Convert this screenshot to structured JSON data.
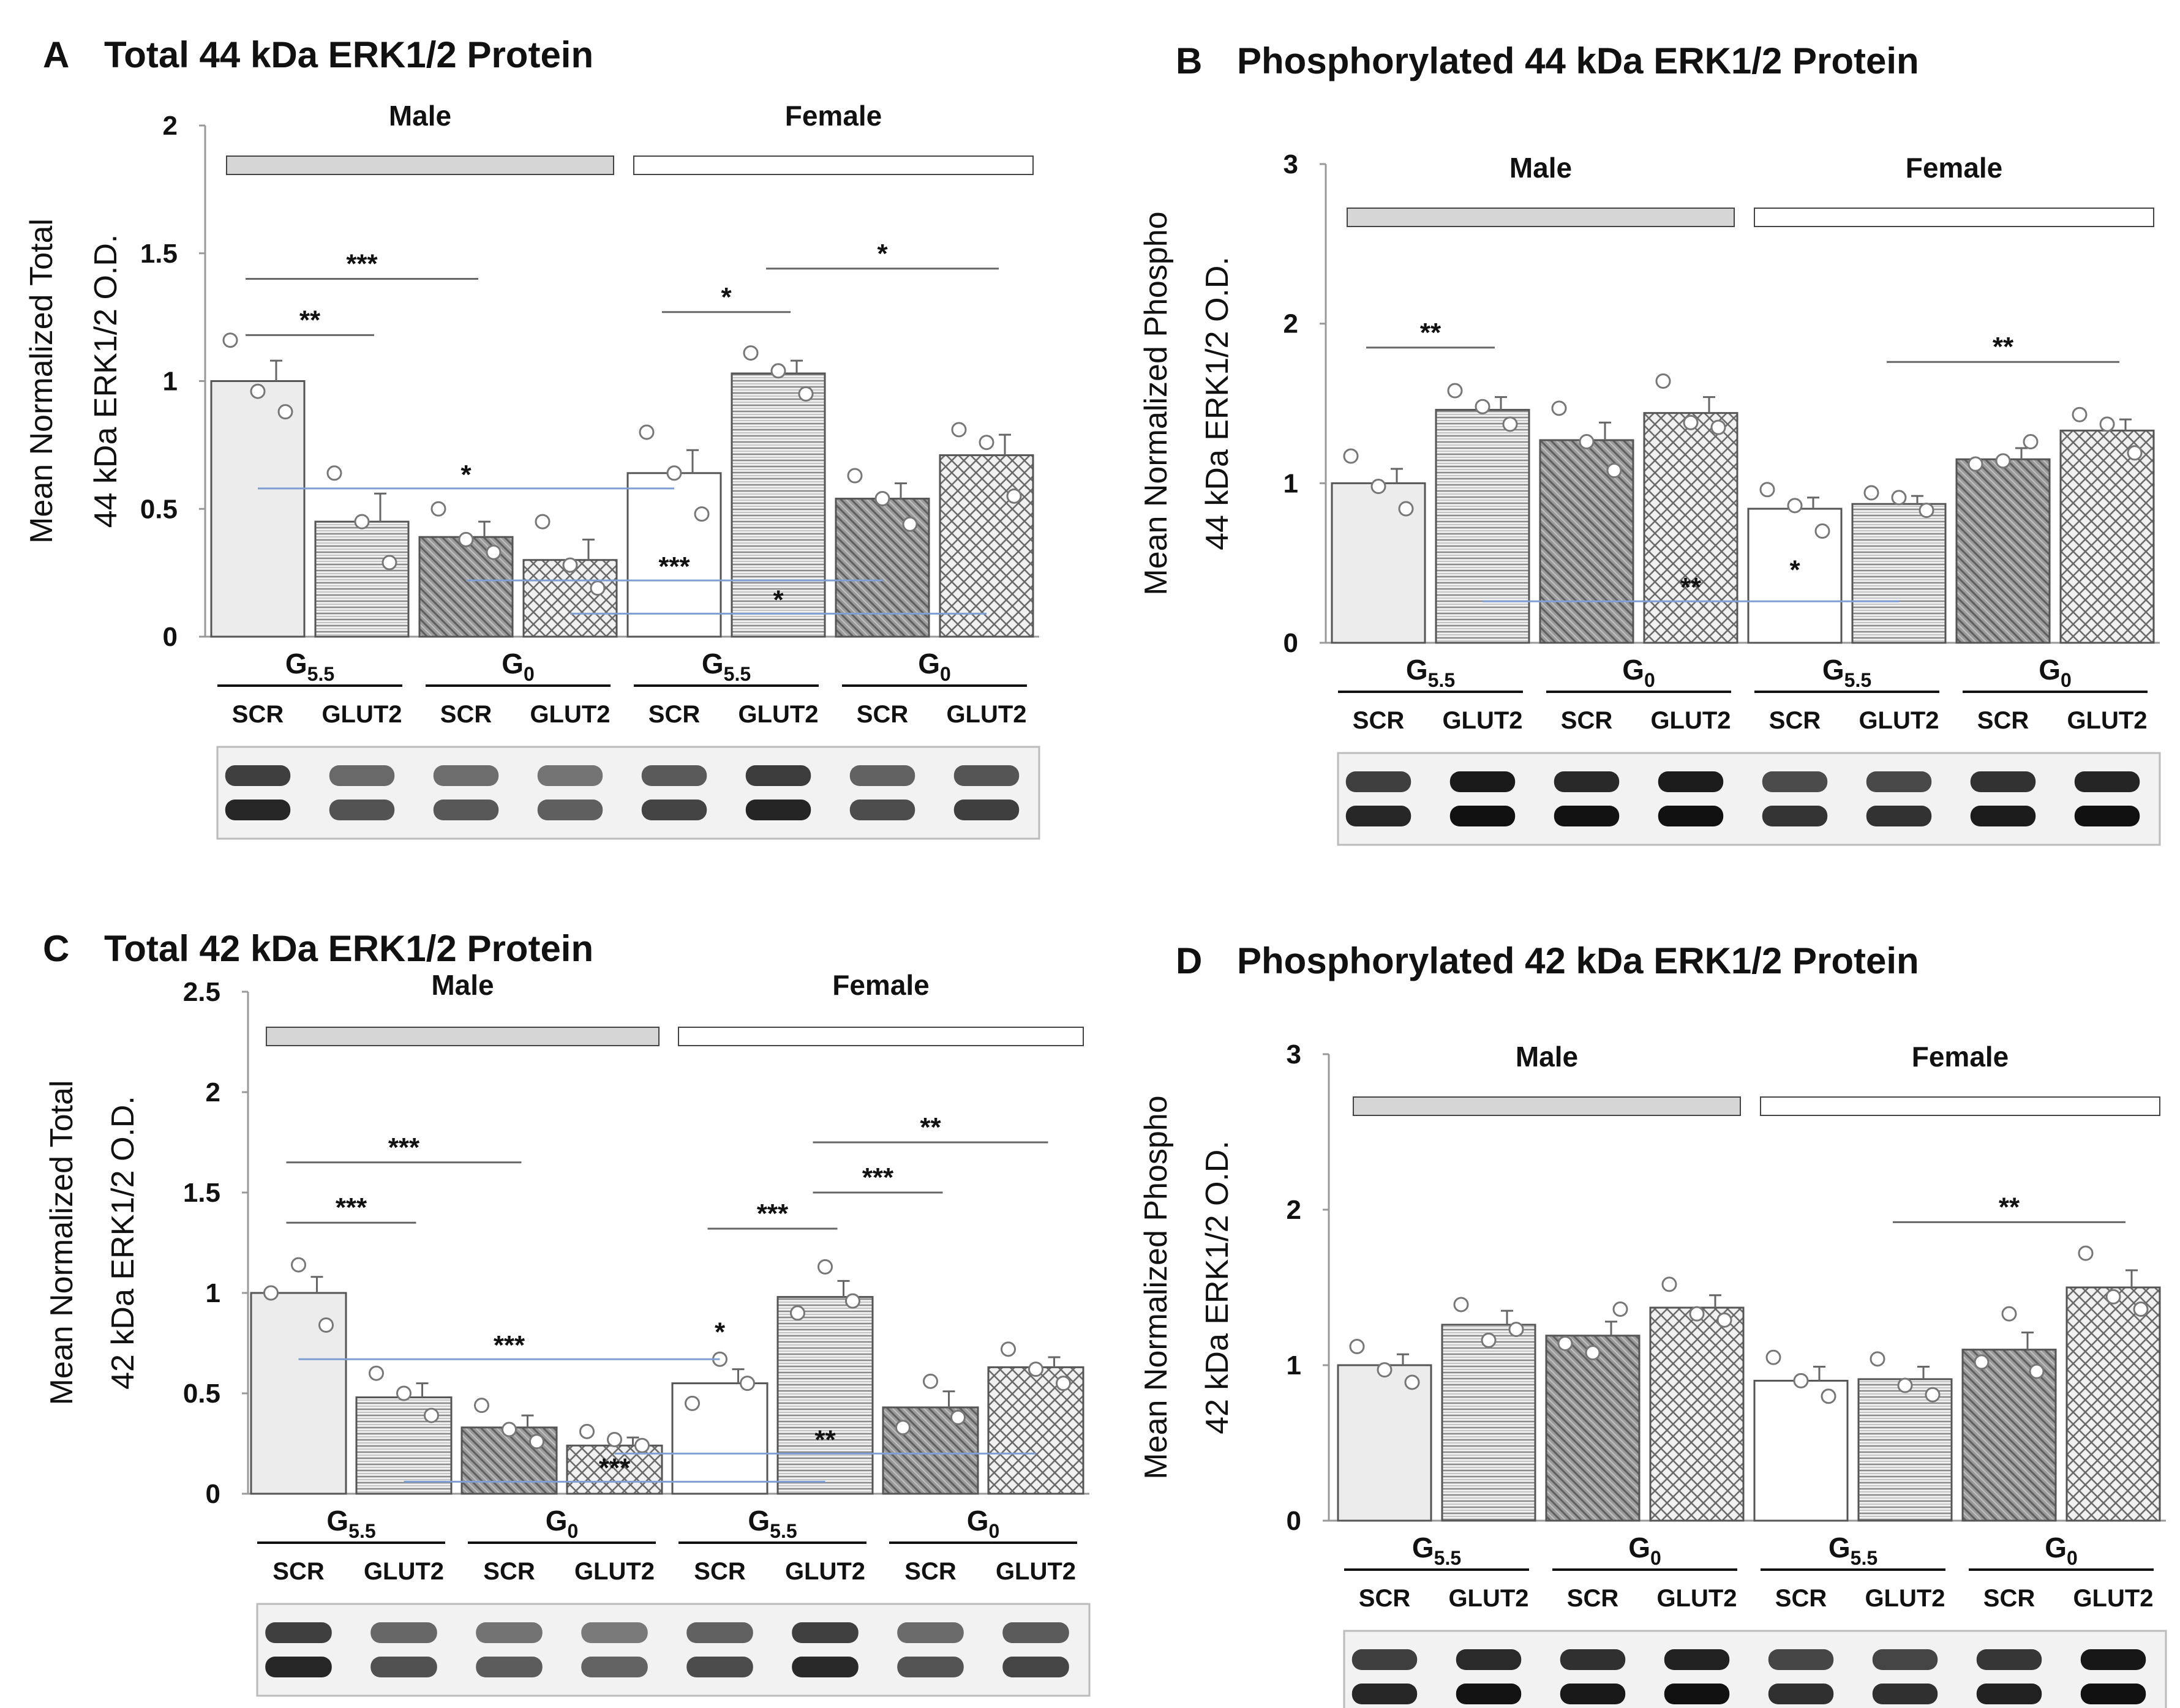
{
  "chart_data": [
    {
      "type": "bar",
      "panel": "A",
      "title": "Total 44 kDa ERK1/2 Protein",
      "ylabel": [
        "Mean Normalized Total",
        "44 kDa ERK1/2 O.D."
      ],
      "ylim": [
        0,
        2
      ],
      "yticks": [
        "0",
        "0.5",
        "1",
        "1.5",
        "2"
      ],
      "sex_labels": [
        "Male",
        "Female"
      ],
      "group_labels": [
        "G5.5",
        "G0",
        "G5.5",
        "G0"
      ],
      "categories": [
        "SCR",
        "GLUT2",
        "SCR",
        "GLUT2",
        "SCR",
        "GLUT2",
        "SCR",
        "GLUT2"
      ],
      "values": [
        1.0,
        0.45,
        0.39,
        0.3,
        0.64,
        1.03,
        0.54,
        0.71
      ],
      "errors": [
        0.08,
        0.11,
        0.06,
        0.08,
        0.09,
        0.05,
        0.06,
        0.08
      ],
      "points": [
        [
          1.16,
          0.96,
          0.88
        ],
        [
          0.64,
          0.45,
          0.29
        ],
        [
          0.5,
          0.38,
          0.33
        ],
        [
          0.45,
          0.28,
          0.19
        ],
        [
          0.8,
          0.64,
          0.48
        ],
        [
          1.11,
          1.04,
          0.95
        ],
        [
          0.63,
          0.54,
          0.44
        ],
        [
          0.81,
          0.76,
          0.55
        ]
      ],
      "brackets": [
        {
          "from": 0,
          "to": 1,
          "y": 1.18,
          "label": "**"
        },
        {
          "from": 0,
          "to": 2,
          "y": 1.4,
          "label": "***"
        },
        {
          "from": 4,
          "to": 5,
          "y": 1.27,
          "label": "*"
        },
        {
          "from": 5,
          "to": 7,
          "y": 1.44,
          "label": "*"
        }
      ],
      "cross_lines": [
        {
          "from": 0,
          "to": 4,
          "y": 0.58,
          "label": "*"
        },
        {
          "from": 2,
          "to": 6,
          "y": 0.22,
          "label": "***"
        },
        {
          "from": 3,
          "to": 7,
          "y": 0.09,
          "label": "*"
        }
      ]
    },
    {
      "type": "bar",
      "panel": "B",
      "title": "Phosphorylated  44 kDa ERK1/2 Protein",
      "ylabel": [
        "Mean Normalized Phospho",
        "44 kDa ERK1/2 O.D."
      ],
      "ylim": [
        0,
        3
      ],
      "yticks": [
        "0",
        "1",
        "2",
        "3"
      ],
      "sex_labels": [
        "Male",
        "Female"
      ],
      "group_labels": [
        "G5.5",
        "G0",
        "G5.5",
        "G0"
      ],
      "categories": [
        "SCR",
        "GLUT2",
        "SCR",
        "GLUT2",
        "SCR",
        "GLUT2",
        "SCR",
        "GLUT2"
      ],
      "values": [
        1.0,
        1.46,
        1.27,
        1.44,
        0.84,
        0.87,
        1.15,
        1.33
      ],
      "errors": [
        0.09,
        0.08,
        0.11,
        0.1,
        0.07,
        0.05,
        0.07,
        0.07
      ],
      "points": [
        [
          1.17,
          0.98,
          0.84
        ],
        [
          1.58,
          1.48,
          1.37
        ],
        [
          1.47,
          1.26,
          1.08
        ],
        [
          1.64,
          1.38,
          1.35
        ],
        [
          0.96,
          0.86,
          0.7
        ],
        [
          0.94,
          0.91,
          0.83
        ],
        [
          1.12,
          1.14,
          1.26
        ],
        [
          1.43,
          1.37,
          1.19
        ]
      ],
      "brackets": [
        {
          "from": 0,
          "to": 1,
          "y": 1.85,
          "label": "**"
        },
        {
          "from": 5,
          "to": 7,
          "y": 1.76,
          "label": "**"
        }
      ],
      "cross_lines": [
        {
          "from": 1,
          "to": 5,
          "y": 0.26,
          "label": "**"
        }
      ],
      "marks": [
        {
          "bar": 4,
          "y": 0.4,
          "label": "*"
        }
      ]
    },
    {
      "type": "bar",
      "panel": "C",
      "title": "Total 42 kDa ERK1/2 Protein",
      "ylabel": [
        "Mean Normalized Total",
        "42 kDa ERK1/2 O.D."
      ],
      "ylim": [
        0,
        2.5
      ],
      "yticks": [
        "0",
        "0.5",
        "1",
        "1.5",
        "2",
        "2.5"
      ],
      "sex_labels": [
        "Male",
        "Female"
      ],
      "group_labels": [
        "G5.5",
        "G0",
        "G5.5",
        "G0"
      ],
      "categories": [
        "SCR",
        "GLUT2",
        "SCR",
        "GLUT2",
        "SCR",
        "GLUT2",
        "SCR",
        "GLUT2"
      ],
      "values": [
        1.0,
        0.48,
        0.33,
        0.24,
        0.55,
        0.98,
        0.43,
        0.63
      ],
      "errors": [
        0.08,
        0.07,
        0.06,
        0.04,
        0.07,
        0.08,
        0.08,
        0.05
      ],
      "points": [
        [
          1.0,
          1.14,
          0.84
        ],
        [
          0.6,
          0.5,
          0.39
        ],
        [
          0.44,
          0.32,
          0.26
        ],
        [
          0.31,
          0.27,
          0.24
        ],
        [
          0.45,
          0.67,
          0.55
        ],
        [
          0.9,
          1.13,
          0.96
        ],
        [
          0.33,
          0.56,
          0.38
        ],
        [
          0.72,
          0.62,
          0.55
        ]
      ],
      "brackets": [
        {
          "from": 0,
          "to": 1,
          "y": 1.35,
          "label": "***"
        },
        {
          "from": 0,
          "to": 2,
          "y": 1.65,
          "label": "***"
        },
        {
          "from": 4,
          "to": 5,
          "y": 1.32,
          "label": "***"
        },
        {
          "from": 5,
          "to": 6,
          "y": 1.5,
          "label": "***"
        },
        {
          "from": 5,
          "to": 7,
          "y": 1.75,
          "label": "**"
        }
      ],
      "cross_lines": [
        {
          "from": 0,
          "to": 4,
          "y": 0.67,
          "label": "***"
        },
        {
          "from": 1,
          "to": 5,
          "y": 0.06,
          "label": "***"
        },
        {
          "from": 3,
          "to": 7,
          "y": 0.2,
          "label": "**"
        }
      ],
      "marks": [
        {
          "bar": 4,
          "y": 0.76,
          "label": "*"
        }
      ]
    },
    {
      "type": "bar",
      "panel": "D",
      "title": "Phosphorylated  42 kDa ERK1/2 Protein",
      "ylabel": [
        "Mean Normalized Phospho",
        "42 kDa ERK1/2 O.D."
      ],
      "ylim": [
        0,
        3
      ],
      "yticks": [
        "0",
        "1",
        "2",
        "3"
      ],
      "sex_labels": [
        "Male",
        "Female"
      ],
      "group_labels": [
        "G5.5",
        "G0",
        "G5.5",
        "G0"
      ],
      "categories": [
        "SCR",
        "GLUT2",
        "SCR",
        "GLUT2",
        "SCR",
        "GLUT2",
        "SCR",
        "GLUT2"
      ],
      "values": [
        1.0,
        1.26,
        1.19,
        1.37,
        0.9,
        0.91,
        1.1,
        1.5
      ],
      "errors": [
        0.07,
        0.09,
        0.09,
        0.08,
        0.09,
        0.08,
        0.11,
        0.11
      ],
      "points": [
        [
          1.12,
          0.97,
          0.89
        ],
        [
          1.39,
          1.16,
          1.23
        ],
        [
          1.14,
          1.08,
          1.36
        ],
        [
          1.52,
          1.33,
          1.29
        ],
        [
          1.05,
          0.9,
          0.8
        ],
        [
          1.04,
          0.87,
          0.81
        ],
        [
          1.02,
          1.33,
          0.96
        ],
        [
          1.72,
          1.44,
          1.36
        ]
      ],
      "brackets": [
        {
          "from": 5,
          "to": 7,
          "y": 1.92,
          "label": "**"
        }
      ],
      "cross_lines": []
    }
  ]
}
